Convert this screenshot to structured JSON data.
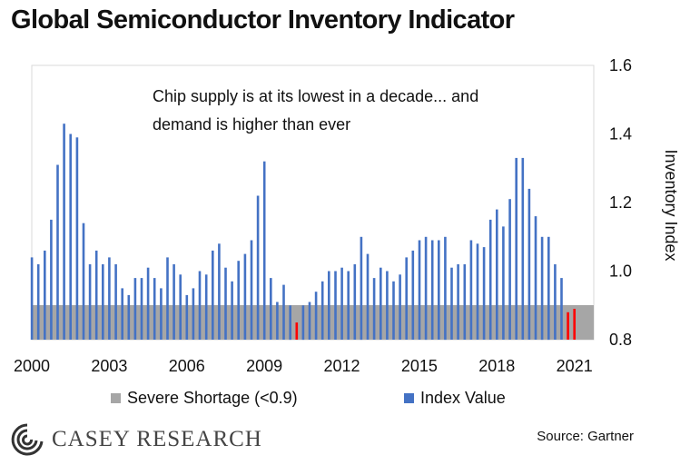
{
  "chart_data": {
    "type": "bar",
    "title": "Global Semiconductor Inventory Indicator",
    "annotation_line1": "Chip supply is at its lowest in a decade... and",
    "annotation_line2": "demand is higher than ever",
    "ylabel": "Inventory Index",
    "ylim": [
      0.8,
      1.6
    ],
    "yticks": [
      "0.8",
      "1.0",
      "1.2",
      "1.4",
      "1.6"
    ],
    "x_tick_labels": [
      "2000",
      "2003",
      "2006",
      "2009",
      "2012",
      "2015",
      "2018",
      "2021"
    ],
    "x_range": [
      2000.0,
      2021.75
    ],
    "shortage_threshold": 0.9,
    "colors": {
      "index": "#4472C4",
      "shortage_bar": "#FF0000",
      "shortage_band": "#A6A6A6"
    },
    "series": [
      {
        "name": "Index Value",
        "x_start": 2000.0,
        "step": 0.25,
        "values": [
          1.04,
          1.02,
          1.06,
          1.15,
          1.31,
          1.43,
          1.4,
          1.39,
          1.14,
          1.02,
          1.06,
          1.02,
          1.04,
          1.02,
          0.95,
          0.93,
          0.98,
          0.98,
          1.01,
          0.98,
          0.95,
          1.04,
          1.02,
          0.99,
          0.93,
          0.95,
          1.0,
          0.99,
          1.06,
          1.08,
          1.01,
          0.97,
          1.03,
          1.05,
          1.09,
          1.22,
          1.32,
          0.98,
          0.91,
          0.96,
          0.9,
          0.85,
          0.9,
          0.91,
          0.94,
          0.97,
          1.0,
          1.0,
          1.01,
          1.0,
          1.02,
          1.1,
          1.05,
          0.98,
          1.01,
          1.0,
          0.97,
          0.99,
          1.04,
          1.06,
          1.09,
          1.1,
          1.09,
          1.09,
          1.1,
          1.01,
          1.02,
          1.02,
          1.09,
          1.08,
          1.07,
          1.15,
          1.18,
          1.13,
          1.21,
          1.33,
          1.33,
          1.24,
          1.16,
          1.1,
          1.1,
          1.02,
          0.98,
          0.88,
          0.89
        ]
      }
    ],
    "legend": [
      {
        "label": "Severe Shortage (<0.9)",
        "color": "#A6A6A6"
      },
      {
        "label": "Index Value",
        "color": "#4472C4"
      }
    ]
  },
  "branding": {
    "logo_name": "CASEY RESEARCH",
    "source": "Source: Gartner"
  }
}
